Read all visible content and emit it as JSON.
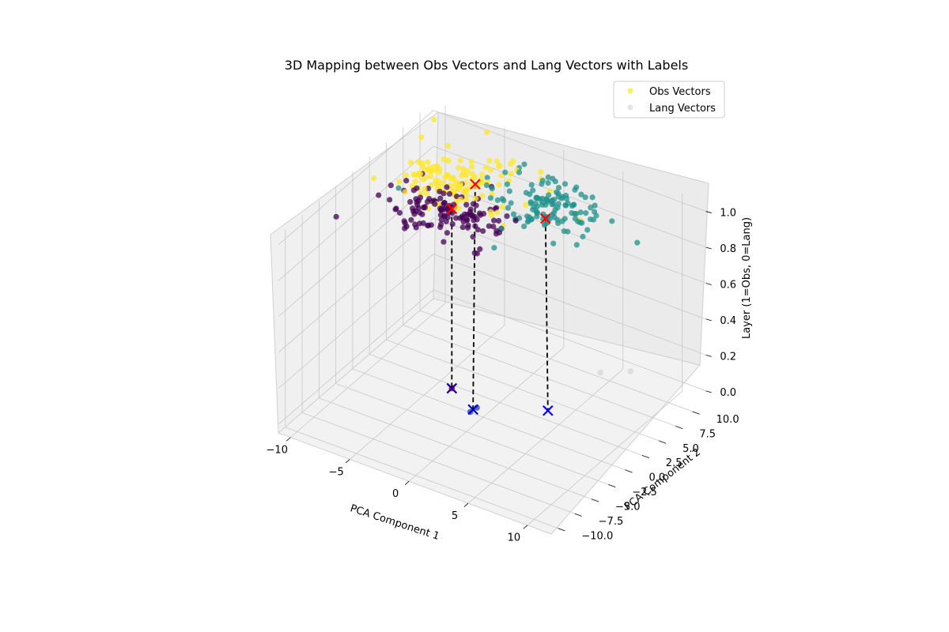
{
  "chart_data": {
    "type": "scatter",
    "projection": "3d",
    "title": "3D Mapping between Obs Vectors and Lang Vectors with Labels",
    "xlabel": "PCA Component 1",
    "ylabel": "PCA Component 2",
    "zlabel": "Layer (1=Obs, 0=Lang)",
    "xlim": [
      -11,
      12
    ],
    "ylim": [
      -11,
      12
    ],
    "zlim": [
      -0.05,
      1.05
    ],
    "xticks": [
      "−10",
      "−5",
      "0",
      "5",
      "10"
    ],
    "yticks": [
      "−10.0",
      "−7.5",
      "−5.0",
      "−2.5",
      "0.0",
      "2.5",
      "5.0",
      "7.5",
      "10.0"
    ],
    "zticks": [
      "0.0",
      "0.2",
      "0.4",
      "0.6",
      "0.8",
      "1.0"
    ],
    "grid": true,
    "legend": {
      "placement": "top-right",
      "entries": [
        {
          "label": "Obs Vectors",
          "color": "#fde725"
        },
        {
          "label": "Lang Vectors",
          "color": "#d9d9d9"
        }
      ]
    },
    "clusters": [
      {
        "color": "#fde725",
        "z": 1,
        "center": [
          -5.0,
          4.5
        ],
        "spread": [
          2.6,
          2.2
        ],
        "count": 130
      },
      {
        "color": "#440154",
        "z": 1,
        "center": [
          -3.0,
          0.5
        ],
        "spread": [
          2.4,
          1.6
        ],
        "count": 130
      },
      {
        "color": "#21918c",
        "z": 1,
        "center": [
          2.5,
          5.5
        ],
        "spread": [
          2.4,
          1.8
        ],
        "count": 130
      }
    ],
    "obs_centroids": [
      {
        "x": -3.2,
        "y": 1.0,
        "z": 1,
        "marker": "x",
        "color": "#ff0000"
      },
      {
        "x": -3.5,
        "y": 5.0,
        "z": 1,
        "marker": "x",
        "color": "#ff0000"
      },
      {
        "x": 3.0,
        "y": 4.0,
        "z": 1,
        "marker": "x",
        "color": "#ff0000"
      }
    ],
    "lang_points": [
      {
        "x": -3.2,
        "y": 1.0,
        "z": 0,
        "color": "#cc0000"
      },
      {
        "x": -0.5,
        "y": -1.0,
        "z": 0,
        "color": "#3b50c8"
      },
      {
        "x": -0.4,
        "y": -0.2,
        "z": 0,
        "color": "#3b50c8"
      },
      {
        "x": 4.5,
        "y": 9.5,
        "z": 0,
        "color": "#d9d9d9"
      },
      {
        "x": 6.2,
        "y": 11.0,
        "z": 0,
        "color": "#d9d9d9"
      }
    ],
    "lang_centroids": [
      {
        "x": -3.2,
        "y": 1.0,
        "z": 0,
        "marker": "x",
        "color": "#0000cc"
      },
      {
        "x": -0.5,
        "y": -0.6,
        "z": 0,
        "marker": "x",
        "color": "#0000cc"
      },
      {
        "x": 4.0,
        "y": 2.6,
        "z": 0,
        "marker": "x",
        "color": "#0000ff"
      }
    ],
    "mappings": [
      {
        "from": [
          -3.2,
          1.0,
          1
        ],
        "to": [
          -3.2,
          1.0,
          0
        ]
      },
      {
        "from": [
          -3.5,
          5.0,
          1
        ],
        "to": [
          -0.5,
          -0.6,
          0
        ]
      },
      {
        "from": [
          3.0,
          4.0,
          1
        ],
        "to": [
          4.0,
          2.6,
          0
        ]
      }
    ]
  }
}
